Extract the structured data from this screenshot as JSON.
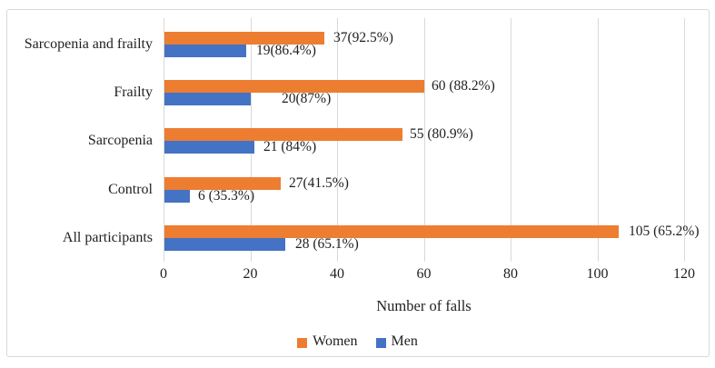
{
  "chart_data": {
    "type": "bar",
    "orientation": "horizontal",
    "title": "",
    "xlabel": "Number of falls",
    "ylabel": "",
    "xlim": [
      0,
      120
    ],
    "x_ticks": [
      "0",
      "20",
      "40",
      "60",
      "80",
      "100",
      "120"
    ],
    "grid": "vertical-gridlines-on",
    "legend_position": "bottom-center",
    "categories": [
      "Sarcopenia and frailty",
      "Frailty",
      "Sarcopenia",
      "Control",
      "All participants"
    ],
    "series": [
      {
        "name": "Women",
        "color": "#ED7D31",
        "values": [
          37,
          60,
          55,
          27,
          105
        ],
        "labels": [
          "37(92.5%)",
          "60 (88.2%)",
          "55 (80.9%)",
          "27(41.5%)",
          "105 (65.2%)"
        ],
        "label_dx": [
          10,
          8,
          8,
          9,
          11
        ]
      },
      {
        "name": "Men",
        "color": "#4472C4",
        "values": [
          19,
          20,
          21,
          6,
          28
        ],
        "labels": [
          "19(86.4%)",
          "20(87%)",
          "21 (84%)",
          "6 (35.3%)",
          "28 (65.1%)"
        ],
        "label_dx": [
          11,
          34,
          10,
          9,
          11
        ]
      }
    ],
    "colors": {
      "gridline": "#D9D9D9",
      "frame_border": "#D9D9D9",
      "text": "#1f1f1f"
    }
  }
}
